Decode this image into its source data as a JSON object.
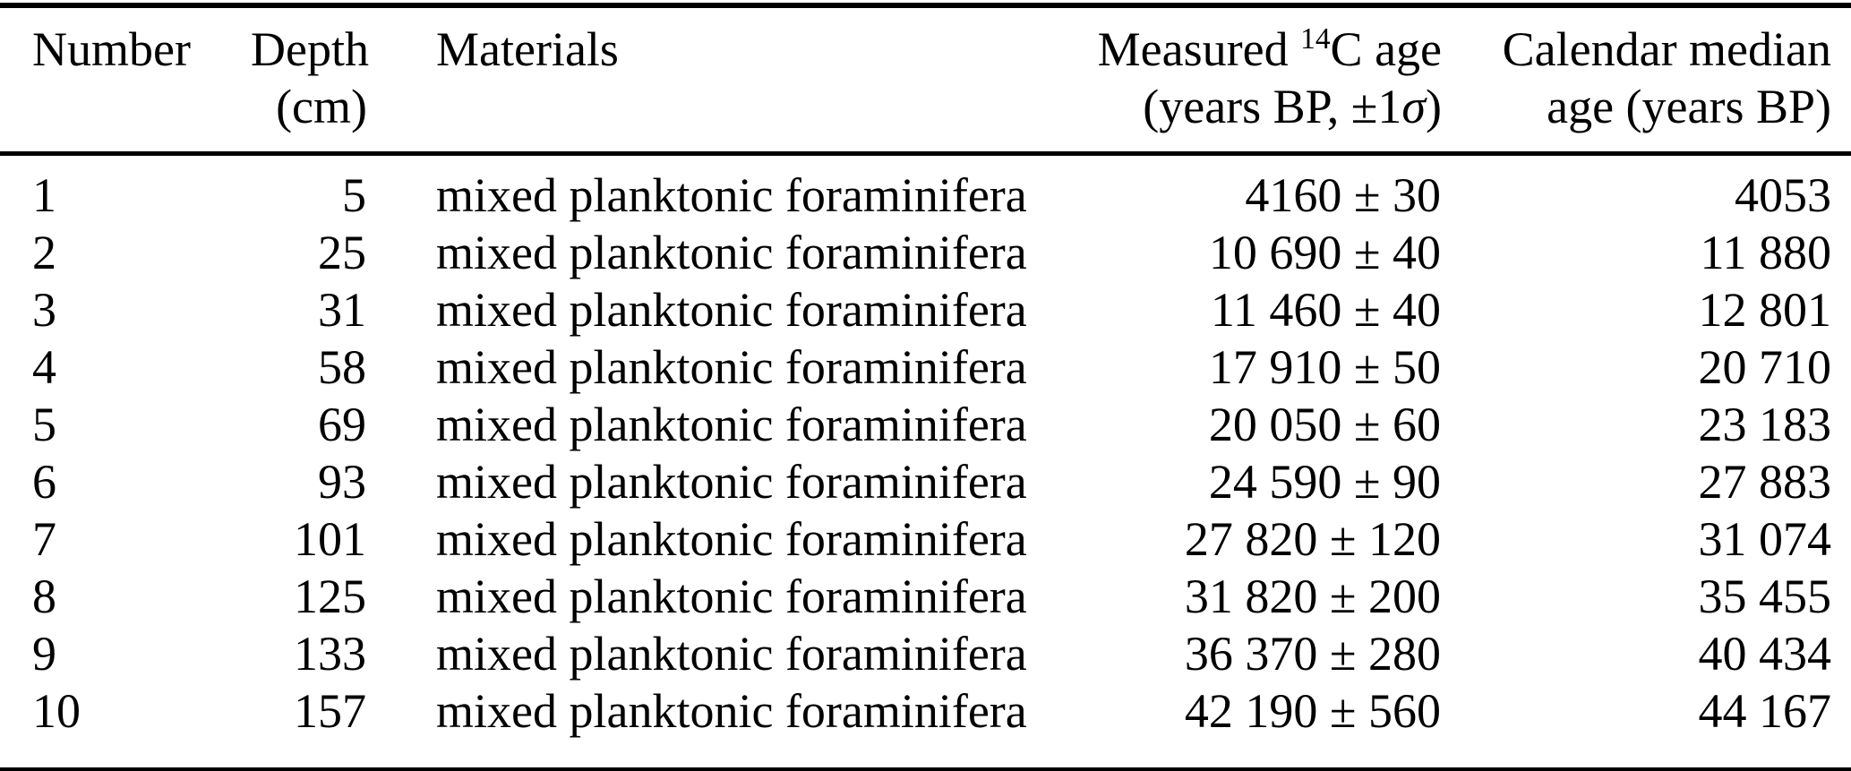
{
  "table": {
    "header": {
      "number": "Number",
      "depth_line1": "Depth",
      "depth_line2": "(cm)",
      "materials": "Materials",
      "c14_line1_pre": "Measured ",
      "c14_sup": "14",
      "c14_line1_post": "C age",
      "c14_line2_pre": "(years BP, ±1",
      "c14_line2_sigma": "σ",
      "c14_line2_post": ")",
      "calendar_line1": "Calendar median",
      "calendar_line2": "age (years BP)"
    },
    "rows": [
      {
        "number": "1",
        "depth": "5",
        "materials": "mixed planktonic foraminifera",
        "c14_age": "4160 ± 30",
        "calendar_age": "4053"
      },
      {
        "number": "2",
        "depth": "25",
        "materials": "mixed planktonic foraminifera",
        "c14_age": "10 690 ± 40",
        "calendar_age": "11 880"
      },
      {
        "number": "3",
        "depth": "31",
        "materials": "mixed planktonic foraminifera",
        "c14_age": "11 460 ± 40",
        "calendar_age": "12 801"
      },
      {
        "number": "4",
        "depth": "58",
        "materials": "mixed planktonic foraminifera",
        "c14_age": "17 910 ± 50",
        "calendar_age": "20 710"
      },
      {
        "number": "5",
        "depth": "69",
        "materials": "mixed planktonic foraminifera",
        "c14_age": "20 050 ± 60",
        "calendar_age": "23 183"
      },
      {
        "number": "6",
        "depth": "93",
        "materials": "mixed planktonic foraminifera",
        "c14_age": "24 590 ± 90",
        "calendar_age": "27 883"
      },
      {
        "number": "7",
        "depth": "101",
        "materials": "mixed planktonic foraminifera",
        "c14_age": "27 820 ± 120",
        "calendar_age": "31 074"
      },
      {
        "number": "8",
        "depth": "125",
        "materials": "mixed planktonic foraminifera",
        "c14_age": "31 820 ± 200",
        "calendar_age": "35 455"
      },
      {
        "number": "9",
        "depth": "133",
        "materials": "mixed planktonic foraminifera",
        "c14_age": "36 370 ± 280",
        "calendar_age": "40 434"
      },
      {
        "number": "10",
        "depth": "157",
        "materials": "mixed planktonic foraminifera",
        "c14_age": "42 190 ± 560",
        "calendar_age": "44 167"
      }
    ],
    "columns_order": [
      "number",
      "depth",
      "materials",
      "c14_age",
      "calendar_age"
    ],
    "colors": {
      "rule": "#000000",
      "text": "#000000",
      "background": "#ffffff"
    }
  }
}
